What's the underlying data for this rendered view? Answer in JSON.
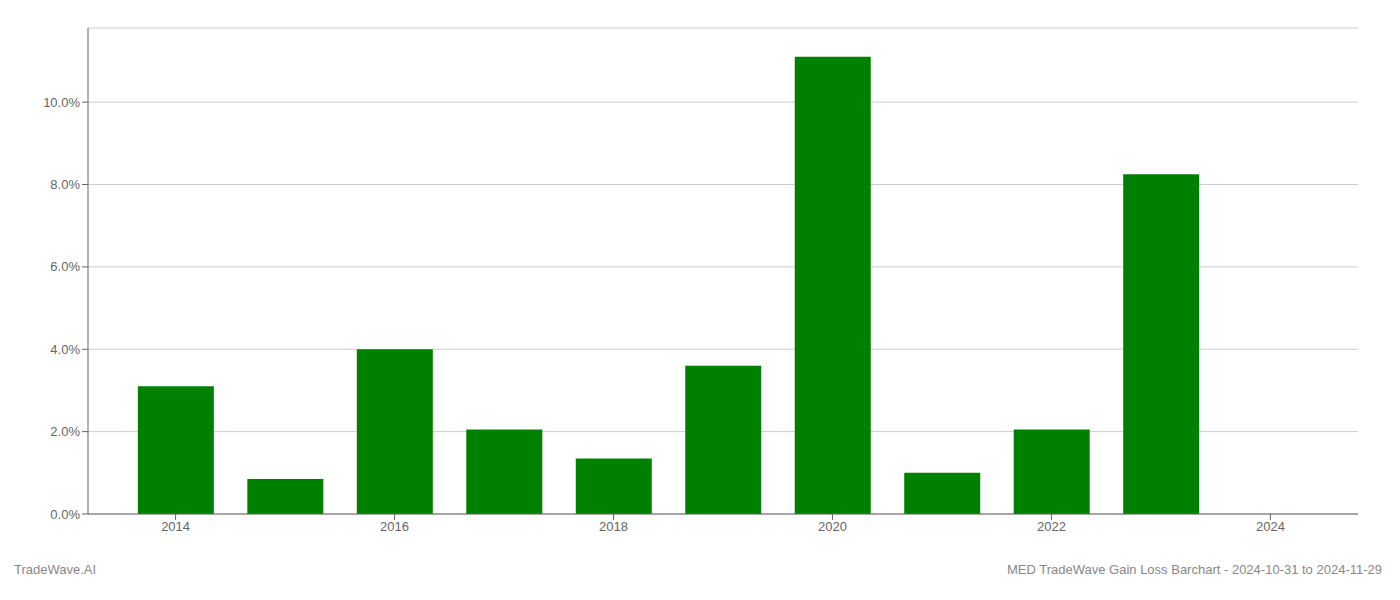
{
  "chart_data": {
    "type": "bar",
    "x": [
      2014,
      2015,
      2016,
      2017,
      2018,
      2019,
      2020,
      2021,
      2022,
      2023,
      2024
    ],
    "values": [
      0.031,
      0.0085,
      0.04,
      0.0205,
      0.0135,
      0.036,
      0.111,
      0.01,
      0.0205,
      0.0825,
      0.0
    ],
    "color": "#008000",
    "xlim": [
      2013.2,
      2024.8
    ],
    "xticks": [
      2014,
      2016,
      2018,
      2020,
      2022,
      2024
    ],
    "ylim": [
      0,
      0.118
    ],
    "yticks": [
      {
        "value": 0.0,
        "label": "0.0%"
      },
      {
        "value": 0.02,
        "label": "2.0%"
      },
      {
        "value": 0.04,
        "label": "4.0%"
      },
      {
        "value": 0.06,
        "label": "6.0%"
      },
      {
        "value": 0.08,
        "label": "8.0%"
      },
      {
        "value": 0.1,
        "label": "10.0%"
      }
    ],
    "grid": true,
    "annotations": [
      "TradeWave.AI",
      "MED TradeWave Gain Loss Barchart - 2024-10-31 to 2024-11-29"
    ]
  }
}
